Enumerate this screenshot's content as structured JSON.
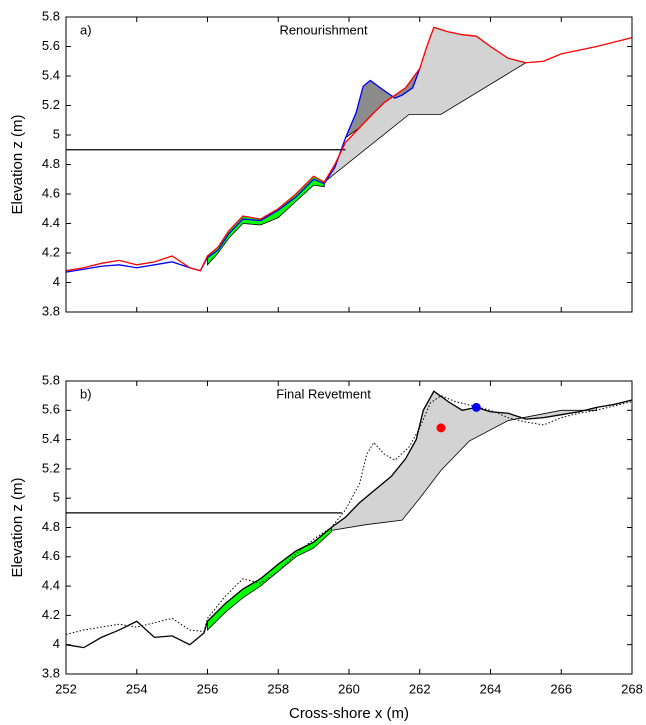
{
  "chart_data": [
    {
      "type": "line",
      "panel_label": "a)",
      "title": "Renourishment",
      "ylabel": "Elevation z (m)",
      "xlim": [
        252,
        268
      ],
      "ylim": [
        3.8,
        5.8
      ],
      "xticks": [
        252,
        254,
        256,
        258,
        260,
        262,
        264,
        266,
        268
      ],
      "show_xtick_labels": false,
      "yticks": [
        3.8,
        4,
        4.2,
        4.4,
        4.6,
        4.8,
        5,
        5.2,
        5.4,
        5.6,
        5.8
      ],
      "regions": [
        {
          "color": "#d3d3d3",
          "x": [
            259.3,
            259.6,
            259.9,
            260.3,
            260.7,
            261,
            261.3,
            261.6,
            262,
            262.2,
            262.4,
            262.8,
            263.2,
            263.6,
            264,
            264.5,
            265,
            262.6,
            261.7,
            259.3
          ],
          "values": [
            4.68,
            4.8,
            4.95,
            5.05,
            5.15,
            5.22,
            5.27,
            5.32,
            5.45,
            5.6,
            5.73,
            5.7,
            5.68,
            5.67,
            5.6,
            5.52,
            5.49,
            5.14,
            5.14,
            4.68
          ]
        },
        {
          "color": "#8c8c8c",
          "x": [
            259.9,
            260.2,
            260.4,
            260.6,
            261,
            261.3,
            261.5,
            261.8,
            262,
            261.6,
            261.3,
            261,
            260.7,
            260.3
          ],
          "values": [
            4.98,
            5.15,
            5.33,
            5.37,
            5.3,
            5.25,
            5.27,
            5.32,
            5.45,
            5.32,
            5.27,
            5.22,
            5.15,
            5.05
          ]
        },
        {
          "color": "#00ff00",
          "x": [
            256,
            256.3,
            256.6,
            257,
            257.5,
            258,
            258.5,
            259,
            259.3,
            259.3,
            259,
            258.5,
            258,
            257.5,
            257,
            256.6,
            256.3,
            256
          ],
          "values": [
            4.18,
            4.24,
            4.35,
            4.45,
            4.43,
            4.5,
            4.6,
            4.72,
            4.68,
            4.65,
            4.66,
            4.55,
            4.44,
            4.39,
            4.4,
            4.3,
            4.2,
            4.12
          ]
        }
      ],
      "series": [
        {
          "color": "#000000",
          "style": "solid",
          "x": [
            252,
            259.9
          ],
          "values": [
            4.9,
            4.9
          ]
        },
        {
          "color": "#0000ff",
          "style": "solid",
          "x": [
            252,
            252.5,
            253,
            253.5,
            254,
            254.5,
            255,
            255.5,
            255.8,
            256,
            256.3,
            256.6,
            257,
            257.5,
            258,
            258.5,
            259,
            259.3,
            259.6,
            259.9,
            260.2,
            260.4,
            260.6,
            261,
            261.3,
            261.5,
            261.8,
            262
          ],
          "values": [
            4.07,
            4.09,
            4.11,
            4.12,
            4.1,
            4.12,
            4.14,
            4.1,
            4.08,
            4.17,
            4.22,
            4.33,
            4.43,
            4.42,
            4.49,
            4.58,
            4.7,
            4.67,
            4.78,
            4.98,
            5.15,
            5.33,
            5.37,
            5.3,
            5.25,
            5.27,
            5.32,
            5.45
          ]
        },
        {
          "color": "#ff0000",
          "style": "solid",
          "x": [
            252,
            252.5,
            253,
            253.5,
            254,
            254.5,
            255,
            255.5,
            255.8,
            256,
            256.3,
            256.6,
            257,
            257.5,
            258,
            258.5,
            259,
            259.3,
            259.6,
            259.9,
            260.3,
            260.7,
            261,
            261.3,
            261.6,
            262,
            262.2,
            262.4,
            262.8,
            263.2,
            263.6,
            264,
            264.5,
            265,
            265.5,
            266,
            267,
            268
          ],
          "values": [
            4.08,
            4.1,
            4.13,
            4.15,
            4.12,
            4.14,
            4.18,
            4.1,
            4.08,
            4.18,
            4.24,
            4.35,
            4.45,
            4.43,
            4.5,
            4.6,
            4.72,
            4.68,
            4.8,
            4.95,
            5.05,
            5.15,
            5.22,
            5.27,
            5.32,
            5.45,
            5.6,
            5.73,
            5.7,
            5.68,
            5.67,
            5.6,
            5.52,
            5.49,
            5.5,
            5.55,
            5.6,
            5.66
          ]
        }
      ],
      "points": []
    },
    {
      "type": "line",
      "panel_label": "b)",
      "title": "Final Revetment",
      "ylabel": "Elevation z (m)",
      "xlabel": "Cross-shore x (m)",
      "xlim": [
        252,
        268
      ],
      "ylim": [
        3.8,
        5.8
      ],
      "xticks": [
        252,
        254,
        256,
        258,
        260,
        262,
        264,
        266,
        268
      ],
      "show_xtick_labels": true,
      "yticks": [
        3.8,
        4,
        4.2,
        4.4,
        4.6,
        4.8,
        5,
        5.2,
        5.4,
        5.6,
        5.8
      ],
      "regions": [
        {
          "color": "#d3d3d3",
          "x": [
            259.5,
            259.9,
            260.3,
            260.7,
            261.2,
            261.6,
            261.9,
            262.1,
            262.4,
            262.8,
            263.2,
            263.6,
            264,
            264.5,
            265,
            265.5,
            266,
            266.5,
            267,
            267,
            266,
            264.5,
            263.4,
            262.6,
            262,
            261.5,
            260.5,
            259.5
          ],
          "values": [
            4.8,
            4.87,
            4.97,
            5.05,
            5.15,
            5.27,
            5.4,
            5.6,
            5.73,
            5.66,
            5.6,
            5.62,
            5.59,
            5.58,
            5.54,
            5.55,
            5.57,
            5.59,
            5.62,
            5.6,
            5.6,
            5.53,
            5.39,
            5.19,
            5.0,
            4.85,
            4.82,
            4.78
          ]
        },
        {
          "color": "#00ff00",
          "x": [
            256,
            256.5,
            257,
            257.5,
            258,
            258.5,
            259,
            259.5,
            259.5,
            259,
            258.5,
            258,
            257.5,
            257,
            256.5,
            256
          ],
          "values": [
            4.16,
            4.28,
            4.38,
            4.45,
            4.55,
            4.64,
            4.7,
            4.8,
            4.77,
            4.66,
            4.6,
            4.5,
            4.4,
            4.32,
            4.22,
            4.1
          ]
        }
      ],
      "series": [
        {
          "color": "#000000",
          "style": "solid",
          "x": [
            252,
            259.8
          ],
          "values": [
            4.9,
            4.9
          ]
        },
        {
          "color": "#000000",
          "style": "dotted",
          "x": [
            252,
            252.5,
            253,
            253.5,
            254,
            254.5,
            255,
            255.5,
            255.9,
            256,
            256.5,
            257,
            257.5,
            258,
            258.5,
            259,
            259.5,
            259.9,
            260.3,
            260.5,
            260.7,
            261,
            261.3,
            261.7,
            262,
            262.3,
            262.6,
            263,
            263.5,
            264,
            264.5,
            265,
            265.5,
            266,
            266.5,
            267,
            268
          ],
          "values": [
            4.07,
            4.1,
            4.12,
            4.14,
            4.12,
            4.15,
            4.18,
            4.1,
            4.09,
            4.18,
            4.33,
            4.45,
            4.42,
            4.5,
            4.62,
            4.72,
            4.8,
            4.92,
            5.1,
            5.3,
            5.38,
            5.3,
            5.26,
            5.35,
            5.48,
            5.65,
            5.7,
            5.66,
            5.63,
            5.6,
            5.55,
            5.52,
            5.5,
            5.55,
            5.58,
            5.6,
            5.66
          ]
        },
        {
          "color": "#000000",
          "style": "solid",
          "x": [
            252,
            252.5,
            253,
            253.5,
            254,
            254.5,
            255,
            255.5,
            255.9,
            256,
            256.5,
            257,
            257.5,
            258,
            258.5,
            259,
            259.5,
            259.9,
            260.3,
            260.7,
            261.2,
            261.6,
            261.9,
            262.1,
            262.4,
            262.8,
            263.2,
            263.6,
            264,
            264.5,
            265,
            265.5,
            266,
            266.5,
            267,
            267.5,
            268
          ],
          "values": [
            4.0,
            3.98,
            4.05,
            4.1,
            4.16,
            4.05,
            4.06,
            4.0,
            4.08,
            4.16,
            4.28,
            4.38,
            4.45,
            4.55,
            4.64,
            4.7,
            4.8,
            4.87,
            4.97,
            5.05,
            5.15,
            5.27,
            5.4,
            5.6,
            5.73,
            5.66,
            5.6,
            5.62,
            5.59,
            5.58,
            5.54,
            5.55,
            5.57,
            5.59,
            5.62,
            5.64,
            5.67
          ]
        }
      ],
      "points": [
        {
          "color": "#ff0000",
          "x": 262.6,
          "y": 5.48
        },
        {
          "color": "#0000ff",
          "x": 263.6,
          "y": 5.62
        }
      ]
    }
  ]
}
